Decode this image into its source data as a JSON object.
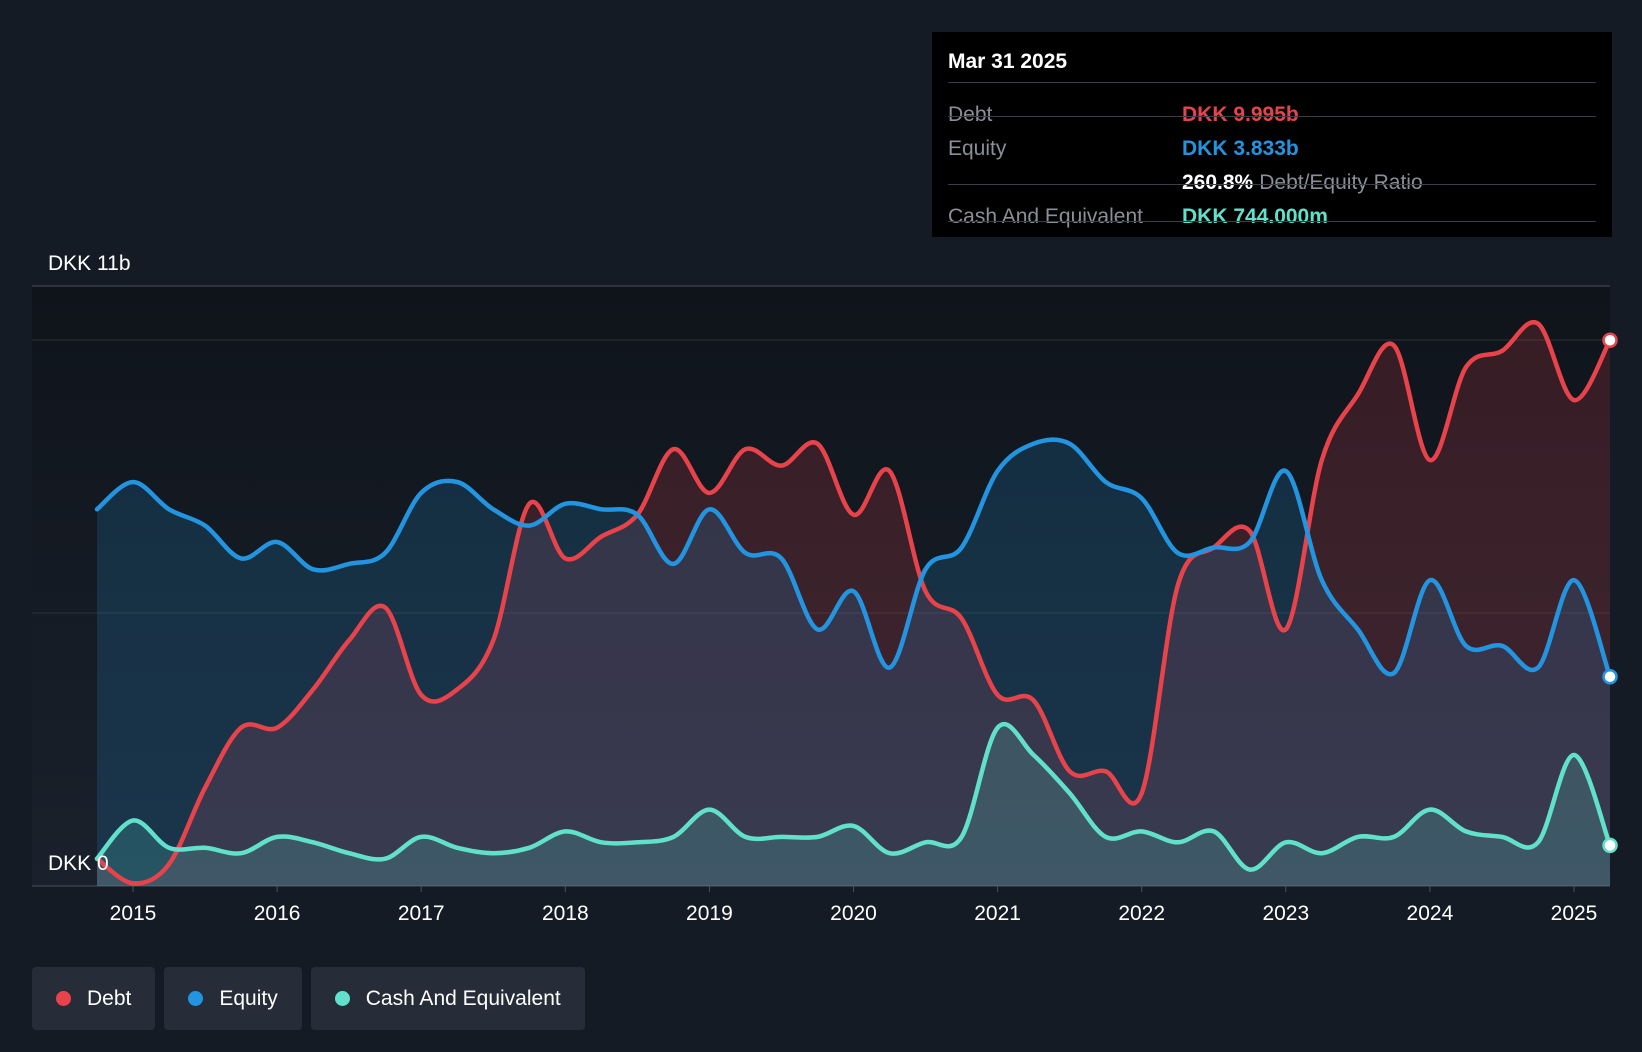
{
  "chart_data": {
    "type": "area",
    "title": "",
    "xlabel": "",
    "ylabel": "",
    "ylim": [
      0,
      11
    ],
    "y_unit": "DKK b",
    "y_axis_top_label": "DKK 11b",
    "y_axis_bottom_label": "DKK 0",
    "x_ticks": [
      "2015",
      "2016",
      "2017",
      "2018",
      "2019",
      "2020",
      "2021",
      "2022",
      "2023",
      "2024",
      "2025"
    ],
    "grid": true,
    "legend_position": "bottom-left",
    "series": [
      {
        "name": "Debt",
        "color": "#e8434b",
        "points": [
          [
            2014.75,
            0.5
          ],
          [
            2015.0,
            0.05
          ],
          [
            2015.25,
            0.4
          ],
          [
            2015.5,
            1.8
          ],
          [
            2015.75,
            2.9
          ],
          [
            2016.0,
            2.9
          ],
          [
            2016.25,
            3.6
          ],
          [
            2016.5,
            4.5
          ],
          [
            2016.75,
            5.1
          ],
          [
            2017.0,
            3.5
          ],
          [
            2017.25,
            3.6
          ],
          [
            2017.5,
            4.5
          ],
          [
            2017.75,
            7.0
          ],
          [
            2018.0,
            6.0
          ],
          [
            2018.25,
            6.4
          ],
          [
            2018.5,
            6.8
          ],
          [
            2018.75,
            8.0
          ],
          [
            2019.0,
            7.2
          ],
          [
            2019.25,
            8.0
          ],
          [
            2019.5,
            7.7
          ],
          [
            2019.75,
            8.1
          ],
          [
            2020.0,
            6.8
          ],
          [
            2020.25,
            7.6
          ],
          [
            2020.5,
            5.4
          ],
          [
            2020.75,
            4.9
          ],
          [
            2021.0,
            3.5
          ],
          [
            2021.25,
            3.4
          ],
          [
            2021.5,
            2.1
          ],
          [
            2021.75,
            2.1
          ],
          [
            2022.0,
            1.7
          ],
          [
            2022.25,
            5.5
          ],
          [
            2022.5,
            6.2
          ],
          [
            2022.75,
            6.5
          ],
          [
            2023.0,
            4.7
          ],
          [
            2023.25,
            7.8
          ],
          [
            2023.5,
            9.0
          ],
          [
            2023.75,
            9.9
          ],
          [
            2024.0,
            7.8
          ],
          [
            2024.25,
            9.5
          ],
          [
            2024.5,
            9.8
          ],
          [
            2024.75,
            10.3
          ],
          [
            2025.0,
            8.9
          ],
          [
            2025.25,
            9.995
          ]
        ]
      },
      {
        "name": "Equity",
        "color": "#2394df",
        "points": [
          [
            2014.75,
            6.9
          ],
          [
            2015.0,
            7.4
          ],
          [
            2015.25,
            6.9
          ],
          [
            2015.5,
            6.6
          ],
          [
            2015.75,
            6.0
          ],
          [
            2016.0,
            6.3
          ],
          [
            2016.25,
            5.8
          ],
          [
            2016.5,
            5.9
          ],
          [
            2016.75,
            6.1
          ],
          [
            2017.0,
            7.2
          ],
          [
            2017.25,
            7.4
          ],
          [
            2017.5,
            6.9
          ],
          [
            2017.75,
            6.6
          ],
          [
            2018.0,
            7.0
          ],
          [
            2018.25,
            6.9
          ],
          [
            2018.5,
            6.8
          ],
          [
            2018.75,
            5.9
          ],
          [
            2019.0,
            6.9
          ],
          [
            2019.25,
            6.1
          ],
          [
            2019.5,
            6.0
          ],
          [
            2019.75,
            4.7
          ],
          [
            2020.0,
            5.4
          ],
          [
            2020.25,
            4.0
          ],
          [
            2020.5,
            5.8
          ],
          [
            2020.75,
            6.2
          ],
          [
            2021.0,
            7.6
          ],
          [
            2021.25,
            8.1
          ],
          [
            2021.5,
            8.1
          ],
          [
            2021.75,
            7.4
          ],
          [
            2022.0,
            7.1
          ],
          [
            2022.25,
            6.1
          ],
          [
            2022.5,
            6.2
          ],
          [
            2022.75,
            6.3
          ],
          [
            2023.0,
            7.6
          ],
          [
            2023.25,
            5.6
          ],
          [
            2023.5,
            4.7
          ],
          [
            2023.75,
            3.9
          ],
          [
            2024.0,
            5.6
          ],
          [
            2024.25,
            4.4
          ],
          [
            2024.5,
            4.4
          ],
          [
            2024.75,
            4.0
          ],
          [
            2025.0,
            5.6
          ],
          [
            2025.25,
            3.833
          ]
        ]
      },
      {
        "name": "Cash And Equivalent",
        "color": "#61e0cc",
        "points": [
          [
            2014.75,
            0.5
          ],
          [
            2015.0,
            1.2
          ],
          [
            2015.25,
            0.7
          ],
          [
            2015.5,
            0.7
          ],
          [
            2015.75,
            0.6
          ],
          [
            2016.0,
            0.9
          ],
          [
            2016.25,
            0.8
          ],
          [
            2016.5,
            0.6
          ],
          [
            2016.75,
            0.5
          ],
          [
            2017.0,
            0.9
          ],
          [
            2017.25,
            0.7
          ],
          [
            2017.5,
            0.6
          ],
          [
            2017.75,
            0.7
          ],
          [
            2018.0,
            1.0
          ],
          [
            2018.25,
            0.8
          ],
          [
            2018.5,
            0.8
          ],
          [
            2018.75,
            0.9
          ],
          [
            2019.0,
            1.4
          ],
          [
            2019.25,
            0.9
          ],
          [
            2019.5,
            0.9
          ],
          [
            2019.75,
            0.9
          ],
          [
            2020.0,
            1.1
          ],
          [
            2020.25,
            0.6
          ],
          [
            2020.5,
            0.8
          ],
          [
            2020.75,
            0.9
          ],
          [
            2021.0,
            2.9
          ],
          [
            2021.25,
            2.4
          ],
          [
            2021.5,
            1.7
          ],
          [
            2021.75,
            0.9
          ],
          [
            2022.0,
            1.0
          ],
          [
            2022.25,
            0.8
          ],
          [
            2022.5,
            1.0
          ],
          [
            2022.75,
            0.3
          ],
          [
            2023.0,
            0.8
          ],
          [
            2023.25,
            0.6
          ],
          [
            2023.5,
            0.9
          ],
          [
            2023.75,
            0.9
          ],
          [
            2024.0,
            1.4
          ],
          [
            2024.25,
            1.0
          ],
          [
            2024.5,
            0.9
          ],
          [
            2024.75,
            0.8
          ],
          [
            2025.0,
            2.4
          ],
          [
            2025.25,
            0.744
          ]
        ]
      }
    ]
  },
  "tooltip": {
    "date": "Mar 31 2025",
    "rows": {
      "debt": {
        "label": "Debt",
        "value": "DKK 9.995b"
      },
      "equity": {
        "label": "Equity",
        "value": "DKK 3.833b"
      },
      "ratio": {
        "value": "260.8%",
        "label": "Debt/Equity Ratio"
      },
      "cash": {
        "label": "Cash And Equivalent",
        "value": "DKK 744.000m"
      }
    }
  },
  "legend": {
    "items": [
      {
        "label": "Debt",
        "color": "#e8434b"
      },
      {
        "label": "Equity",
        "color": "#2394df"
      },
      {
        "label": "Cash And Equivalent",
        "color": "#61e0cc"
      }
    ]
  }
}
